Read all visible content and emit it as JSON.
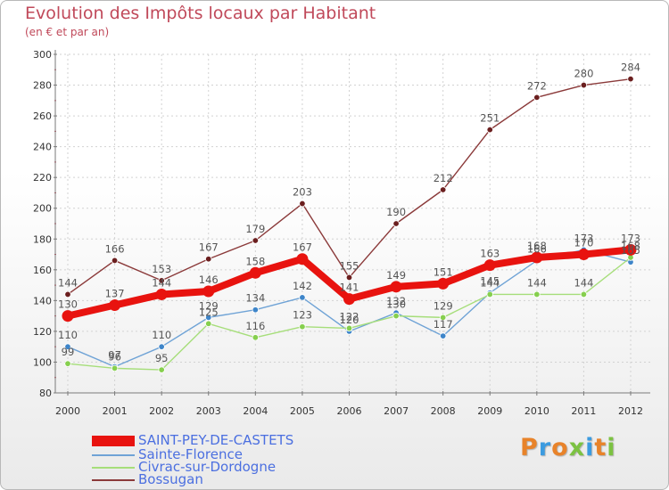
{
  "header": {
    "title": "Evolution des Impôts locaux par Habitant",
    "subtitle": "(en € et par an)"
  },
  "colors": {
    "text": "#c0495a",
    "legend_text": "#4b6fe0",
    "axis": "#7a7a7a",
    "grid": "#d2d2d2"
  },
  "chart_data": {
    "type": "line",
    "categories": [
      "2000",
      "2001",
      "2002",
      "2003",
      "2004",
      "2005",
      "2006",
      "2007",
      "2008",
      "2009",
      "2010",
      "2011",
      "2012"
    ],
    "y_ticks": [
      "80",
      "100",
      "120",
      "140",
      "160",
      "180",
      "200",
      "220",
      "240",
      "260",
      "280",
      "300"
    ],
    "ylim": [
      80,
      300
    ],
    "grid": true,
    "legend_position": "bottom-left",
    "series": [
      {
        "name": "SAINT-PEY-DE-CASTETS",
        "color": "#e8130f",
        "marker_color": "#e8130f",
        "emphasis": true,
        "values": [
          130,
          137,
          144,
          146,
          158,
          167,
          141,
          149,
          151,
          163,
          168,
          170,
          173
        ],
        "labels": [
          "130",
          "137",
          "144",
          "146",
          "158",
          "167",
          "141",
          "149",
          "151",
          "163",
          "168",
          "170",
          "173"
        ]
      },
      {
        "name": "Sainte-Florence",
        "color": "#6fa3d6",
        "marker_color": "#3e85c9",
        "emphasis": false,
        "values": [
          110,
          97,
          110,
          129,
          134,
          142,
          120,
          132,
          117,
          145,
          166,
          173,
          165
        ],
        "labels": [
          "110",
          "97",
          "110",
          "129",
          "134",
          "142",
          "120",
          "132",
          "117",
          "145",
          "166",
          "173",
          "165"
        ]
      },
      {
        "name": "Civrac-sur-Dordogne",
        "color": "#a6de7a",
        "marker_color": "#86cf4e",
        "emphasis": false,
        "values": [
          99,
          96,
          95,
          125,
          116,
          123,
          122,
          130,
          129,
          144,
          144,
          144,
          168
        ],
        "labels": [
          "99",
          "96",
          "95",
          "125",
          "116",
          "123",
          "122",
          "130",
          "129",
          "144",
          "144",
          "144",
          "168"
        ]
      },
      {
        "name": "Bossugan",
        "color": "#8b3a3a",
        "marker_color": "#6b1f1f",
        "emphasis": false,
        "values": [
          144,
          166,
          153,
          167,
          179,
          203,
          155,
          190,
          212,
          251,
          272,
          280,
          284
        ],
        "labels": [
          "144",
          "166",
          "153",
          "167",
          "179",
          "203",
          "155",
          "190",
          "212",
          "251",
          "272",
          "280",
          "284"
        ]
      }
    ]
  },
  "legend": {
    "items": [
      {
        "label": "SAINT-PEY-DE-CASTETS"
      },
      {
        "label": "Sainte-Florence"
      },
      {
        "label": "Civrac-sur-Dordogne"
      },
      {
        "label": "Bossugan"
      }
    ]
  },
  "brand": {
    "letters": [
      "P",
      "r",
      "o",
      "x",
      "i",
      "t",
      "i"
    ],
    "letter_colors": [
      "#e8832a",
      "#3b9be0",
      "#e8832a",
      "#7cc242",
      "#3b9be0",
      "#e8832a",
      "#7cc242"
    ]
  }
}
